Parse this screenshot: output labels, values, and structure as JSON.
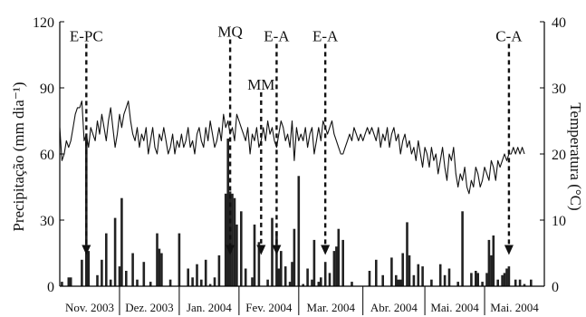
{
  "chart_data": {
    "type": "bar+line",
    "left_axis": {
      "label": "Precipitação (mm dia⁻¹)",
      "ylim": [
        0,
        120
      ],
      "ticks": [
        0,
        30,
        60,
        90,
        120
      ]
    },
    "right_axis": {
      "label": "Temperatura (°C)",
      "ylim": [
        0,
        40
      ],
      "ticks": [
        0,
        10,
        20,
        30,
        40
      ]
    },
    "x_range_days": [
      0,
      219
    ],
    "months": [
      {
        "label": "Nov. 2003",
        "start": 0,
        "end": 27
      },
      {
        "label": "Dez. 2003",
        "start": 27,
        "end": 54
      },
      {
        "label": "Jan. 2004",
        "start": 54,
        "end": 81
      },
      {
        "label": "Fev. 2004",
        "start": 81,
        "end": 108
      },
      {
        "label": "Mar. 2004",
        "start": 108,
        "end": 137
      },
      {
        "label": "Abr. 2004",
        "start": 137,
        "end": 165
      },
      {
        "label": "Mai. 2004",
        "start": 165,
        "end": 192
      },
      {
        "label": "Mai. 2004",
        "start": 192,
        "end": 219
      }
    ],
    "precipitation_series": {
      "axis": "left",
      "points": [
        [
          1,
          2
        ],
        [
          4,
          4
        ],
        [
          5,
          4
        ],
        [
          10,
          12
        ],
        [
          12,
          68
        ],
        [
          13,
          16
        ],
        [
          17,
          5
        ],
        [
          19,
          12
        ],
        [
          21,
          24
        ],
        [
          23,
          3
        ],
        [
          25,
          31
        ],
        [
          27,
          9
        ],
        [
          28,
          40
        ],
        [
          30,
          7
        ],
        [
          33,
          15
        ],
        [
          35,
          3
        ],
        [
          38,
          11
        ],
        [
          41,
          2
        ],
        [
          44,
          24
        ],
        [
          45,
          17
        ],
        [
          46,
          15
        ],
        [
          50,
          3
        ],
        [
          54,
          24
        ],
        [
          58,
          8
        ],
        [
          60,
          4
        ],
        [
          62,
          10
        ],
        [
          64,
          3
        ],
        [
          66,
          12
        ],
        [
          68,
          1
        ],
        [
          70,
          4
        ],
        [
          72,
          14
        ],
        [
          75,
          42
        ],
        [
          76,
          67
        ],
        [
          77,
          43
        ],
        [
          78,
          42
        ],
        [
          79,
          40
        ],
        [
          80,
          28
        ],
        [
          82,
          34
        ],
        [
          84,
          8
        ],
        [
          87,
          4
        ],
        [
          88,
          28
        ],
        [
          90,
          20
        ],
        [
          94,
          3
        ],
        [
          96,
          31
        ],
        [
          98,
          25
        ],
        [
          99,
          8
        ],
        [
          100,
          16
        ],
        [
          102,
          9
        ],
        [
          104,
          2
        ],
        [
          105,
          11
        ],
        [
          106,
          26
        ],
        [
          108,
          50
        ],
        [
          110,
          1
        ],
        [
          112,
          8
        ],
        [
          114,
          3
        ],
        [
          115,
          21
        ],
        [
          117,
          2
        ],
        [
          118,
          4
        ],
        [
          120,
          11
        ],
        [
          122,
          6
        ],
        [
          124,
          16
        ],
        [
          125,
          18
        ],
        [
          126,
          26
        ],
        [
          128,
          21
        ],
        [
          132,
          2
        ],
        [
          140,
          7
        ],
        [
          143,
          12
        ],
        [
          146,
          5
        ],
        [
          150,
          13
        ],
        [
          152,
          5
        ],
        [
          153,
          3
        ],
        [
          154,
          3
        ],
        [
          155,
          15
        ],
        [
          157,
          29
        ],
        [
          158,
          14
        ],
        [
          160,
          5
        ],
        [
          162,
          10
        ],
        [
          164,
          9
        ],
        [
          168,
          3
        ],
        [
          172,
          10
        ],
        [
          174,
          5
        ],
        [
          176,
          8
        ],
        [
          180,
          2
        ],
        [
          182,
          34
        ],
        [
          186,
          6
        ],
        [
          188,
          7
        ],
        [
          189,
          6
        ],
        [
          191,
          2
        ],
        [
          193,
          6
        ],
        [
          194,
          21
        ],
        [
          195,
          14
        ],
        [
          196,
          23
        ],
        [
          198,
          3
        ],
        [
          200,
          5
        ],
        [
          201,
          6
        ],
        [
          202,
          8
        ],
        [
          203,
          9
        ],
        [
          206,
          3
        ],
        [
          208,
          3
        ],
        [
          210,
          1
        ],
        [
          213,
          3
        ]
      ]
    },
    "temperature_series": {
      "axis": "right",
      "points": [
        [
          0,
          24
        ],
        [
          1,
          19
        ],
        [
          2,
          20
        ],
        [
          3,
          22
        ],
        [
          4,
          21
        ],
        [
          5,
          22
        ],
        [
          6,
          24
        ],
        [
          7,
          26
        ],
        [
          8,
          27
        ],
        [
          9,
          27
        ],
        [
          10,
          28
        ],
        [
          11,
          22
        ],
        [
          12,
          23
        ],
        [
          13,
          21
        ],
        [
          14,
          24
        ],
        [
          15,
          23
        ],
        [
          16,
          22
        ],
        [
          17,
          25
        ],
        [
          18,
          23
        ],
        [
          19,
          26
        ],
        [
          20,
          24
        ],
        [
          21,
          22
        ],
        [
          22,
          25
        ],
        [
          23,
          27
        ],
        [
          24,
          24
        ],
        [
          25,
          21
        ],
        [
          26,
          23
        ],
        [
          27,
          26
        ],
        [
          28,
          24
        ],
        [
          29,
          26
        ],
        [
          30,
          27
        ],
        [
          31,
          28
        ],
        [
          32,
          25
        ],
        [
          33,
          23
        ],
        [
          34,
          22
        ],
        [
          35,
          24
        ],
        [
          36,
          21
        ],
        [
          37,
          23
        ],
        [
          38,
          22
        ],
        [
          39,
          24
        ],
        [
          40,
          20
        ],
        [
          41,
          22
        ],
        [
          42,
          24
        ],
        [
          43,
          21
        ],
        [
          44,
          20
        ],
        [
          45,
          23
        ],
        [
          46,
          22
        ],
        [
          47,
          24
        ],
        [
          48,
          22
        ],
        [
          49,
          20
        ],
        [
          50,
          21
        ],
        [
          51,
          23
        ],
        [
          52,
          20
        ],
        [
          53,
          22
        ],
        [
          54,
          21
        ],
        [
          55,
          23
        ],
        [
          56,
          21
        ],
        [
          57,
          22
        ],
        [
          58,
          24
        ],
        [
          59,
          21
        ],
        [
          60,
          22
        ],
        [
          61,
          20
        ],
        [
          62,
          23
        ],
        [
          63,
          24
        ],
        [
          64,
          22
        ],
        [
          65,
          21
        ],
        [
          66,
          24
        ],
        [
          67,
          22
        ],
        [
          68,
          25
        ],
        [
          69,
          23
        ],
        [
          70,
          21
        ],
        [
          71,
          22
        ],
        [
          72,
          24
        ],
        [
          73,
          22
        ],
        [
          74,
          26
        ],
        [
          75,
          24
        ],
        [
          76,
          25
        ],
        [
          77,
          23
        ],
        [
          78,
          24
        ],
        [
          79,
          22
        ],
        [
          80,
          26
        ],
        [
          81,
          25
        ],
        [
          82,
          24
        ],
        [
          83,
          23
        ],
        [
          84,
          22
        ],
        [
          85,
          24
        ],
        [
          86,
          20
        ],
        [
          87,
          23
        ],
        [
          88,
          22
        ],
        [
          89,
          24
        ],
        [
          90,
          21
        ],
        [
          91,
          22
        ],
        [
          92,
          24
        ],
        [
          93,
          22
        ],
        [
          94,
          25
        ],
        [
          95,
          23
        ],
        [
          96,
          24
        ],
        [
          97,
          22
        ],
        [
          98,
          21
        ],
        [
          99,
          23
        ],
        [
          100,
          25
        ],
        [
          101,
          24
        ],
        [
          102,
          22
        ],
        [
          103,
          23
        ],
        [
          104,
          21
        ],
        [
          105,
          25
        ],
        [
          106,
          19
        ],
        [
          107,
          24
        ],
        [
          108,
          22
        ],
        [
          109,
          23
        ],
        [
          110,
          22
        ],
        [
          111,
          24
        ],
        [
          112,
          21
        ],
        [
          113,
          23
        ],
        [
          114,
          24
        ],
        [
          115,
          20
        ],
        [
          116,
          22
        ],
        [
          117,
          24
        ],
        [
          118,
          22
        ],
        [
          119,
          25
        ],
        [
          120,
          24
        ],
        [
          121,
          23
        ],
        [
          122,
          24
        ],
        [
          123,
          25
        ],
        [
          124,
          23
        ],
        [
          125,
          22
        ],
        [
          126,
          21
        ],
        [
          127,
          20
        ],
        [
          128,
          20
        ],
        [
          129,
          21
        ],
        [
          130,
          22
        ],
        [
          131,
          23
        ],
        [
          132,
          22
        ],
        [
          133,
          24
        ],
        [
          134,
          23
        ],
        [
          135,
          22
        ],
        [
          136,
          23
        ],
        [
          137,
          22
        ],
        [
          138,
          23
        ],
        [
          139,
          24
        ],
        [
          140,
          23
        ],
        [
          141,
          24
        ],
        [
          142,
          23
        ],
        [
          143,
          22
        ],
        [
          144,
          24
        ],
        [
          145,
          21
        ],
        [
          146,
          23
        ],
        [
          147,
          22
        ],
        [
          148,
          24
        ],
        [
          149,
          21
        ],
        [
          150,
          23
        ],
        [
          151,
          24
        ],
        [
          152,
          22
        ],
        [
          153,
          23
        ],
        [
          154,
          20
        ],
        [
          155,
          22
        ],
        [
          156,
          23
        ],
        [
          157,
          21
        ],
        [
          158,
          22
        ],
        [
          159,
          20
        ],
        [
          160,
          21
        ],
        [
          161,
          19
        ],
        [
          162,
          22
        ],
        [
          163,
          20
        ],
        [
          164,
          18
        ],
        [
          165,
          21
        ],
        [
          166,
          20
        ],
        [
          167,
          18
        ],
        [
          168,
          21
        ],
        [
          169,
          19
        ],
        [
          170,
          20
        ],
        [
          171,
          17
        ],
        [
          172,
          19
        ],
        [
          173,
          21
        ],
        [
          174,
          18
        ],
        [
          175,
          16
        ],
        [
          176,
          20
        ],
        [
          177,
          19
        ],
        [
          178,
          21
        ],
        [
          179,
          17
        ],
        [
          180,
          15
        ],
        [
          181,
          17
        ],
        [
          182,
          16
        ],
        [
          183,
          18
        ],
        [
          184,
          15
        ],
        [
          185,
          14
        ],
        [
          186,
          16
        ],
        [
          187,
          15
        ],
        [
          188,
          18
        ],
        [
          189,
          17
        ],
        [
          190,
          15
        ],
        [
          191,
          16
        ],
        [
          192,
          18
        ],
        [
          193,
          17
        ],
        [
          194,
          16
        ],
        [
          195,
          19
        ],
        [
          196,
          18
        ],
        [
          197,
          16
        ],
        [
          198,
          19
        ],
        [
          199,
          18
        ],
        [
          200,
          19
        ],
        [
          201,
          20
        ],
        [
          202,
          19
        ],
        [
          203,
          20
        ],
        [
          204,
          20
        ],
        [
          205,
          21
        ],
        [
          206,
          20
        ],
        [
          207,
          21
        ],
        [
          208,
          20
        ],
        [
          209,
          21
        ],
        [
          210,
          20
        ]
      ]
    },
    "events": [
      {
        "label": "E-PC",
        "day": 12,
        "arrow_from": 110,
        "arrow_to": 15
      },
      {
        "label": "MQ",
        "day": 77,
        "arrow_from": 112,
        "arrow_to": 15
      },
      {
        "label": "MM",
        "day": 91,
        "arrow_from": 88,
        "arrow_to": 15
      },
      {
        "label": "E-A",
        "day": 98,
        "arrow_from": 110,
        "arrow_to": 15
      },
      {
        "label": "E-A",
        "day": 120,
        "arrow_from": 110,
        "arrow_to": 15
      },
      {
        "label": "C-A",
        "day": 203,
        "arrow_from": 110,
        "arrow_to": 15
      }
    ],
    "colors": {
      "bars": "#222222",
      "line": "#111111",
      "axis": "#000000"
    }
  }
}
